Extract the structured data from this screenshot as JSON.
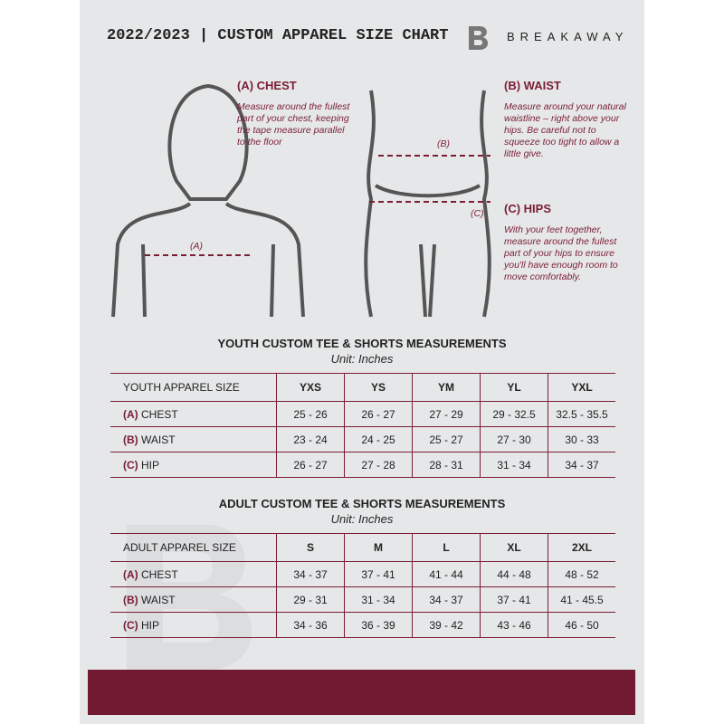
{
  "header": {
    "title": "2022/2023 | CUSTOM APPAREL SIZE CHART",
    "brand": "BREAKAWAY"
  },
  "guide": {
    "chest": {
      "title": "(A) CHEST",
      "desc": "Measure around the fullest part of your chest, keeping the tape measure parallel to the floor",
      "marker": "(A)"
    },
    "waist": {
      "title": "(B) WAIST",
      "desc": "Measure around your natural waistline – right above your hips. Be careful not to squeeze too tight to allow a little give.",
      "marker": "(B)"
    },
    "hips": {
      "title": "(C) HIPS",
      "desc": "With your feet together, measure around the fullest part of your hips to ensure you'll have enough room to move comfortably.",
      "marker": "(C)"
    }
  },
  "youth": {
    "title": "YOUTH CUSTOM TEE & SHORTS MEASUREMENTS",
    "unit": "Unit: Inches",
    "head": "YOUTH APPAREL SIZE",
    "sizes": [
      "YXS",
      "YS",
      "YM",
      "YL",
      "YXL"
    ],
    "rows": [
      {
        "code": "(A)",
        "label": "CHEST",
        "v": [
          "25 - 26",
          "26 - 27",
          "27 - 29",
          "29 - 32.5",
          "32.5 - 35.5"
        ]
      },
      {
        "code": "(B)",
        "label": "WAIST",
        "v": [
          "23 - 24",
          "24 - 25",
          "25 - 27",
          "27 - 30",
          "30 - 33"
        ]
      },
      {
        "code": "(C)",
        "label": "HIP",
        "v": [
          "26 - 27",
          "27 - 28",
          "28 - 31",
          "31 - 34",
          "34 - 37"
        ]
      }
    ]
  },
  "adult": {
    "title": "ADULT CUSTOM TEE & SHORTS MEASUREMENTS",
    "unit": "Unit: Inches",
    "head": "ADULT APPAREL SIZE",
    "sizes": [
      "S",
      "M",
      "L",
      "XL",
      "2XL"
    ],
    "rows": [
      {
        "code": "(A)",
        "label": "CHEST",
        "v": [
          "34 - 37",
          "37 - 41",
          "41 - 44",
          "44 - 48",
          "48 - 52"
        ]
      },
      {
        "code": "(B)",
        "label": "WAIST",
        "v": [
          "29 - 31",
          "31 - 34",
          "34 - 37",
          "37 - 41",
          "41 - 45.5"
        ]
      },
      {
        "code": "(C)",
        "label": "HIP",
        "v": [
          "34 - 36",
          "36 - 39",
          "39 - 42",
          "43 - 46",
          "46 - 50"
        ]
      }
    ]
  },
  "colors": {
    "accent": "#711a31",
    "panel": "#e6e7e8"
  }
}
